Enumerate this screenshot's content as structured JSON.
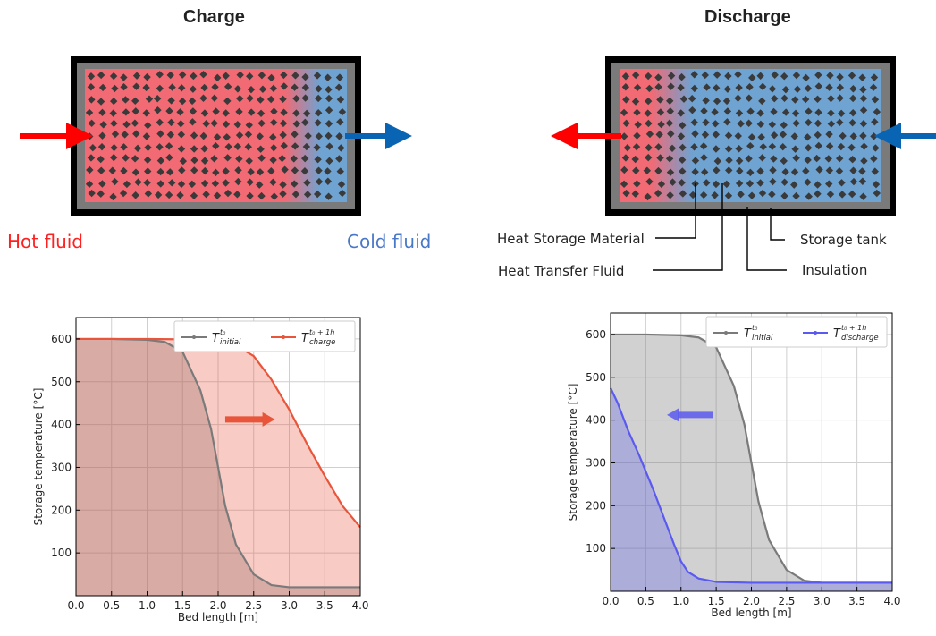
{
  "panels": {
    "charge": {
      "title": "Charge",
      "hot_label": "Hot fluid",
      "cold_label": "Cold fluid",
      "hot_color": "#ff2020",
      "cold_color": "#4a78c8"
    },
    "discharge": {
      "title": "Discharge",
      "annotations": {
        "hsm": "Heat Storage Material",
        "htf": "Heat Transfer Fluid",
        "tank": "Storage tank",
        "insulation": "Insulation"
      }
    }
  },
  "colors": {
    "hot_fill": "#f26a74",
    "cold_fill": "#6ea3d2",
    "insulation": "#7a7a7a",
    "tank_wall": "#000000",
    "particle": "#3a3a3a",
    "inlet_hot_arrow": "#ff0000",
    "cold_arrow": "#0a64b4",
    "initial_series": "#7a7a7a",
    "charge_series": "#e8553a",
    "discharge_series": "#5a5af0"
  },
  "chart_data": [
    {
      "type": "line",
      "xlabel": "Bed length [m]",
      "ylabel": "Storage temperature  [°C]",
      "xlim": [
        0,
        4.0
      ],
      "ylim": [
        0,
        650
      ],
      "xticks": [
        "0.0",
        "0.5",
        "1.0",
        "1.5",
        "2.0",
        "2.5",
        "3.0",
        "3.5",
        "4.0"
      ],
      "yticks": [
        "100",
        "200",
        "300",
        "400",
        "500",
        "600"
      ],
      "grid": true,
      "legend_position": "top-right",
      "direction_arrow": "right",
      "series": [
        {
          "name": "T_initial^{t0}",
          "legend_main": "T",
          "legend_sup": "t₀",
          "legend_sub": "initial",
          "color": "#7a7a7a",
          "x": [
            0.0,
            0.5,
            1.0,
            1.25,
            1.5,
            1.75,
            1.9,
            2.0,
            2.1,
            2.25,
            2.5,
            2.75,
            3.0,
            3.5,
            4.0
          ],
          "y": [
            600,
            600,
            598,
            593,
            570,
            480,
            390,
            300,
            210,
            120,
            50,
            25,
            20,
            20,
            20
          ]
        },
        {
          "name": "T_charge^{t0+1h}",
          "legend_main": "T",
          "legend_sup": "t₀ + 1h",
          "legend_sub": "charge",
          "color": "#e8553a",
          "x": [
            0.0,
            0.5,
            1.0,
            1.5,
            2.0,
            2.25,
            2.5,
            2.75,
            3.0,
            3.25,
            3.5,
            3.75,
            4.0
          ],
          "y": [
            600,
            600,
            600,
            599,
            595,
            585,
            560,
            505,
            435,
            355,
            280,
            210,
            160
          ]
        }
      ]
    },
    {
      "type": "line",
      "xlabel": "Bed length [m]",
      "ylabel": "Storage temperature  [°C]",
      "xlim": [
        0,
        4.0
      ],
      "ylim": [
        0,
        650
      ],
      "xticks": [
        "0.0",
        "0.5",
        "1.0",
        "1.5",
        "2.0",
        "2.5",
        "3.0",
        "3.5",
        "4.0"
      ],
      "yticks": [
        "100",
        "200",
        "300",
        "400",
        "500",
        "600"
      ],
      "grid": true,
      "legend_position": "top-right",
      "direction_arrow": "left",
      "series": [
        {
          "name": "T_initial^{t0}",
          "legend_main": "T",
          "legend_sup": "t₀",
          "legend_sub": "initial",
          "color": "#7a7a7a",
          "x": [
            0.0,
            0.5,
            1.0,
            1.25,
            1.5,
            1.75,
            1.9,
            2.0,
            2.1,
            2.25,
            2.5,
            2.75,
            3.0,
            3.5,
            4.0
          ],
          "y": [
            600,
            600,
            598,
            593,
            570,
            480,
            390,
            300,
            210,
            120,
            50,
            25,
            20,
            20,
            20
          ]
        },
        {
          "name": "T_discharge^{t0+1h}",
          "legend_main": "T",
          "legend_sup": "t₀ + 1h",
          "legend_sub": "discharge",
          "color": "#5a5af0",
          "x": [
            0.0,
            0.1,
            0.25,
            0.4,
            0.5,
            0.6,
            0.75,
            0.9,
            1.0,
            1.1,
            1.25,
            1.5,
            2.0,
            3.0,
            4.0
          ],
          "y": [
            475,
            440,
            375,
            320,
            280,
            240,
            175,
            110,
            70,
            45,
            30,
            22,
            20,
            20,
            20
          ]
        }
      ]
    }
  ]
}
